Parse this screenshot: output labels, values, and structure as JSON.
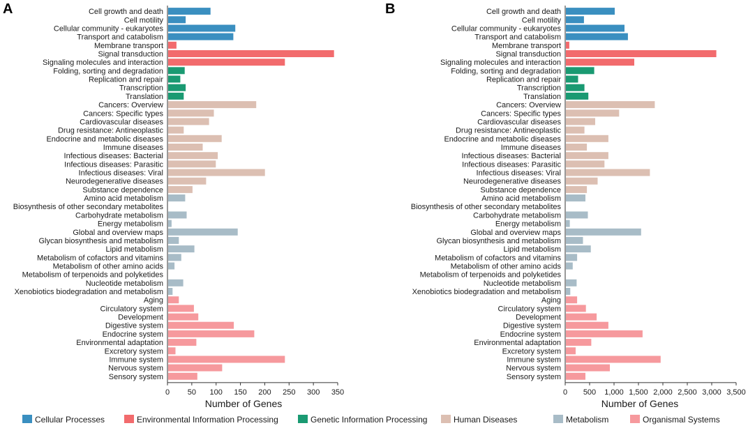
{
  "chart_data": [
    {
      "panel": "A",
      "type": "bar",
      "orientation": "horizontal",
      "xlabel": "Number of Genes",
      "xlim": [
        0,
        350
      ],
      "xticks": [
        0,
        50,
        100,
        150,
        200,
        250,
        300,
        350
      ],
      "xtick_labels": [
        "0",
        "50",
        "100",
        "150",
        "200",
        "250",
        "300",
        "350"
      ],
      "categories": [
        "Cell growth and death",
        "Cell motility",
        "Cellular community - eukaryotes",
        "Transport and catabolism",
        "Membrane transport",
        "Signal transduction",
        "Signaling molecules and interaction",
        "Folding, sorting and degradation",
        "Replication and repair",
        "Transcription",
        "Translation",
        "Cancers: Overview",
        "Cancers: Specific types",
        "Cardiovascular diseases",
        "Drug resistance: Antineoplastic",
        "Endocrine and metabolic diseases",
        "Immune diseases",
        "Infectious diseases: Bacterial",
        "Infectious diseases: Parasitic",
        "Infectious diseases: Viral",
        "Neurodegenerative diseases",
        "Substance dependence",
        "Amino acid metabolism",
        "Biosynthesis of other secondary metabolites",
        "Carbohydrate metabolism",
        "Energy metabolism",
        "Global and overview maps",
        "Glycan biosynthesis and metabolism",
        "Lipid metabolism",
        "Metabolism of cofactors and vitamins",
        "Metabolism of other amino acids",
        "Metabolism of terpenoids and polyketides",
        "Nucleotide metabolism",
        "Xenobiotics biodegradation and metabolism",
        "Aging",
        "Circulatory system",
        "Development",
        "Digestive system",
        "Endocrine system",
        "Environmental adaptation",
        "Excretory system",
        "Immune system",
        "Nervous system",
        "Sensory system"
      ],
      "groups": [
        0,
        0,
        0,
        0,
        1,
        1,
        1,
        2,
        2,
        2,
        2,
        3,
        3,
        3,
        3,
        3,
        3,
        3,
        3,
        3,
        3,
        3,
        4,
        4,
        4,
        4,
        4,
        4,
        4,
        4,
        4,
        4,
        4,
        4,
        5,
        5,
        5,
        5,
        5,
        5,
        5,
        5,
        5,
        5
      ],
      "values": [
        87,
        36,
        138,
        134,
        17,
        341,
        240,
        34,
        25,
        36,
        32,
        181,
        94,
        84,
        32,
        110,
        71,
        102,
        98,
        199,
        78,
        50,
        35,
        0,
        38,
        7,
        143,
        22,
        54,
        27,
        13,
        0,
        31,
        9,
        22,
        53,
        62,
        135,
        177,
        58,
        15,
        240,
        111,
        60
      ]
    },
    {
      "panel": "B",
      "type": "bar",
      "orientation": "horizontal",
      "xlabel": "Number of Genes",
      "xlim": [
        0,
        3500
      ],
      "xticks": [
        0,
        500,
        1000,
        1500,
        2000,
        2500,
        3000,
        3500
      ],
      "xtick_labels": [
        "0",
        "500",
        "1,000",
        "1,500",
        "2,000",
        "2,500",
        "3,000",
        "3,500"
      ],
      "categories": [
        "Cell growth and death",
        "Cell motility",
        "Cellular community - eukaryotes",
        "Transport and catabolism",
        "Membrane transport",
        "Signal transduction",
        "Signaling molecules and interaction",
        "Folding, sorting and degradation",
        "Replication and repair",
        "Transcription",
        "Translation",
        "Cancers: Overview",
        "Cancers: Specific types",
        "Cardiovascular diseases",
        "Drug resistance: Antineoplastic",
        "Endocrine and metabolic diseases",
        "Immune diseases",
        "Infectious diseases: Bacterial",
        "Infectious diseases: Parasitic",
        "Infectious diseases: Viral",
        "Neurodegenerative diseases",
        "Substance dependence",
        "Amino acid metabolism",
        "Biosynthesis of other secondary metabolites",
        "Carbohydrate metabolism",
        "Energy metabolism",
        "Global and overview maps",
        "Glycan biosynthesis and metabolism",
        "Lipid metabolism",
        "Metabolism of cofactors and vitamins",
        "Metabolism of other amino acids",
        "Metabolism of terpenoids and polyketides",
        "Nucleotide metabolism",
        "Xenobiotics biodegradation and metabolism",
        "Aging",
        "Circulatory system",
        "Development",
        "Digestive system",
        "Endocrine system",
        "Environmental adaptation",
        "Excretory system",
        "Immune system",
        "Nervous system",
        "Sensory system"
      ],
      "groups": [
        0,
        0,
        0,
        0,
        1,
        1,
        1,
        2,
        2,
        2,
        2,
        3,
        3,
        3,
        3,
        3,
        3,
        3,
        3,
        3,
        3,
        3,
        4,
        4,
        4,
        4,
        4,
        4,
        4,
        4,
        4,
        4,
        4,
        4,
        5,
        5,
        5,
        5,
        5,
        5,
        5,
        5,
        5,
        5
      ],
      "values": [
        1000,
        370,
        1200,
        1270,
        70,
        3080,
        1400,
        580,
        250,
        380,
        460,
        1820,
        1090,
        600,
        380,
        870,
        430,
        870,
        790,
        1720,
        650,
        430,
        400,
        0,
        450,
        80,
        1540,
        350,
        510,
        230,
        140,
        0,
        220,
        90,
        230,
        410,
        630,
        870,
        1570,
        520,
        200,
        1940,
        900,
        400
      ]
    }
  ],
  "legend": {
    "items": [
      {
        "label": "Cellular Processes",
        "color": "#3a8fc0"
      },
      {
        "label": "Environmental Information Processing",
        "color": "#f26b6d"
      },
      {
        "label": "Genetic Information Processing",
        "color": "#1a9a72"
      },
      {
        "label": "Human Diseases",
        "color": "#dcbfb2"
      },
      {
        "label": "Metabolism",
        "color": "#a8bcc7"
      },
      {
        "label": "Organismal Systems",
        "color": "#f6999d"
      }
    ]
  },
  "axis_color": "#333333"
}
